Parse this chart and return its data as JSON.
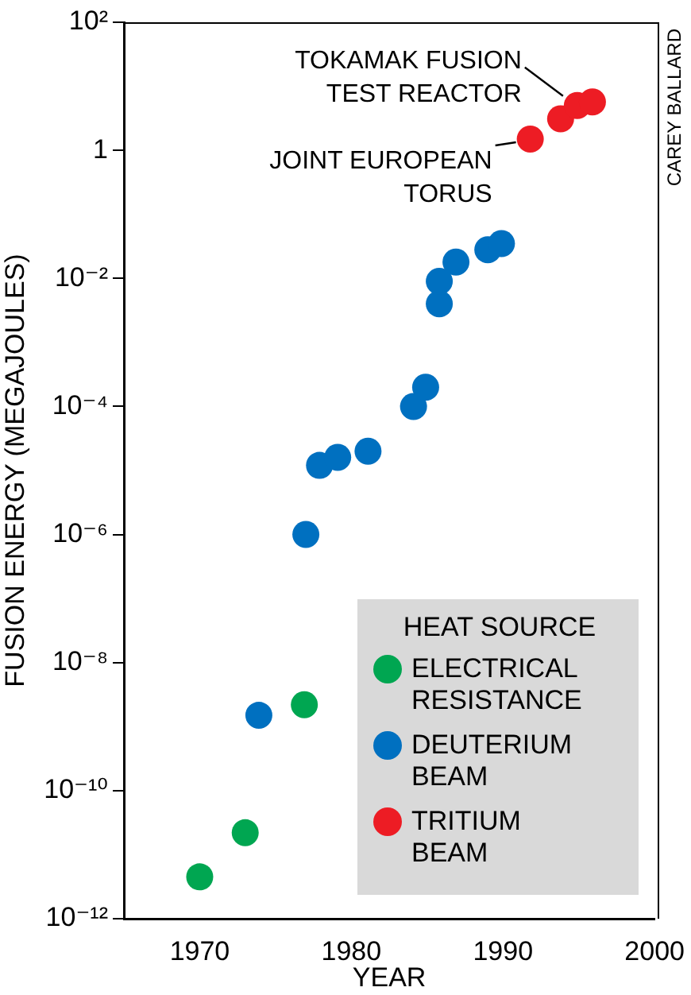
{
  "chart_data": {
    "type": "scatter",
    "xlabel": "YEAR",
    "ylabel": "FUSION ENERGY (MEGAJOULES)",
    "legend_title": "HEAT SOURCE",
    "legend": "bottom right",
    "marker": "circle",
    "log": "y",
    "xlim": [
      1965,
      2000
    ],
    "xticks": [
      1970,
      1980,
      1990,
      2000
    ],
    "ylim": [
      1e-12,
      100
    ],
    "yticks": [
      {
        "value": 1e-12,
        "label": "10⁻¹²"
      },
      {
        "value": 1e-10,
        "label": "10⁻¹⁰"
      },
      {
        "value": 1e-08,
        "label": "10⁻⁸"
      },
      {
        "value": 1e-06,
        "label": "10⁻⁶"
      },
      {
        "value": 0.0001,
        "label": "10⁻⁴"
      },
      {
        "value": 0.01,
        "label": "10⁻²"
      },
      1,
      {
        "value": 100,
        "label": "10²"
      }
    ],
    "series": [
      {
        "name": "ELECTRICAL RESISTANCE",
        "color": "#00a651",
        "x": [
          1970,
          1973,
          1976.9
        ],
        "values": [
          4.5e-12,
          2.2e-11,
          2.2e-09
        ]
      },
      {
        "name": "DEUTERIUM BEAM",
        "color": "#0070c0",
        "x": [
          1973.9,
          1977,
          1977.9,
          1979.1,
          1981.1,
          1984.1,
          1984.9,
          1985.8,
          1985.8,
          1986.9,
          1989,
          1989.9
        ],
        "values": [
          1.5e-09,
          1e-06,
          1.2e-05,
          1.6e-05,
          2e-05,
          0.0001,
          0.0002,
          0.004,
          0.009,
          0.018,
          0.028,
          0.035
        ]
      },
      {
        "name": "TRITIUM BEAM",
        "color": "#ed1c24",
        "x": [
          1991.8,
          1993.8,
          1994.9,
          1995.9
        ],
        "values": [
          1.5,
          3.1,
          5,
          5.7
        ]
      }
    ],
    "annotations": [
      {
        "text": "TOKAMAK FUSION TEST REACTOR",
        "x": 1994.9,
        "y": 5
      },
      {
        "text": "JOINT EUROPEAN TORUS",
        "x": 1991.8,
        "y": 1.5
      },
      "CAREY BALLARD"
    ]
  }
}
